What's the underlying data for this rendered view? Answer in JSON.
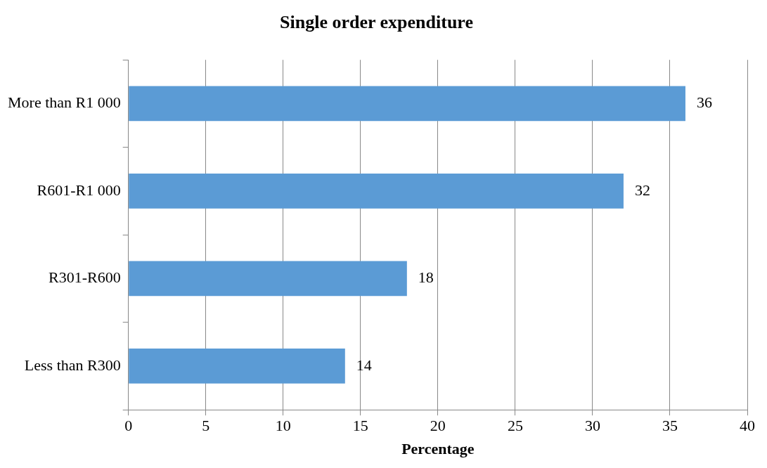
{
  "chart_data": {
    "type": "bar",
    "orientation": "horizontal",
    "title": "Single order expenditure",
    "xlabel": "Percentage",
    "categories": [
      "More than R1 000",
      "R601-R1 000",
      "R301-R600",
      "Less than R300"
    ],
    "values": [
      36,
      32,
      18,
      14
    ],
    "color": "#5b9bd5",
    "xlim": [
      0,
      40
    ],
    "xticks": [
      0,
      5,
      10,
      15,
      20,
      25,
      30,
      35,
      40
    ],
    "grid": "x",
    "data_labels": true,
    "legend": false
  }
}
